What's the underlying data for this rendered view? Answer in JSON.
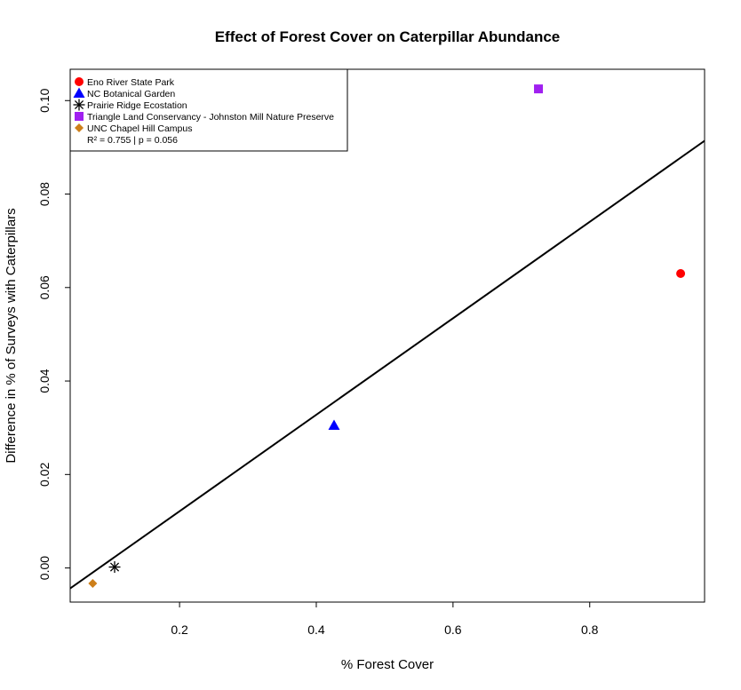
{
  "chart_data": {
    "type": "scatter",
    "title": "Effect of Forest Cover on Caterpillar Abundance",
    "xlabel": "% Forest Cover",
    "ylabel": "Difference in % of Surveys with Caterpillars",
    "xlim": [
      0.04,
      0.968
    ],
    "ylim": [
      -0.0073,
      0.1067
    ],
    "x_ticks": [
      0.2,
      0.4,
      0.6,
      0.8
    ],
    "x_tick_labels": [
      "0.2",
      "0.4",
      "0.6",
      "0.8"
    ],
    "y_ticks": [
      0.0,
      0.02,
      0.04,
      0.06,
      0.08,
      0.1
    ],
    "y_tick_labels": [
      "0.00",
      "0.02",
      "0.04",
      "0.06",
      "0.08",
      "0.10"
    ],
    "grid": false,
    "legend_position": "top-left",
    "series": [
      {
        "name": "Eno River State Park",
        "x": [
          0.933
        ],
        "y": [
          0.063
        ],
        "color": "#ff0000",
        "marker": "circle"
      },
      {
        "name": "NC Botanical Garden",
        "x": [
          0.426
        ],
        "y": [
          0.0305
        ],
        "color": "#0000ff",
        "marker": "triangle"
      },
      {
        "name": "Prairie Ridge Ecostation",
        "x": [
          0.105
        ],
        "y": [
          0.0002
        ],
        "color": "#000000",
        "marker": "asterisk"
      },
      {
        "name": "Triangle Land Conservancy - Johnston Mill Nature Preserve",
        "x": [
          0.725
        ],
        "y": [
          0.1025
        ],
        "color": "#a020f0",
        "marker": "square"
      },
      {
        "name": "UNC Chapel Hill Campus",
        "x": [
          0.073
        ],
        "y": [
          -0.0033
        ],
        "color": "#cd7f1a",
        "marker": "diamond"
      }
    ],
    "fit_line": {
      "intercept": -0.0085,
      "slope": 0.1032,
      "x_range": [
        0.04,
        0.968
      ],
      "color": "#000000"
    },
    "annotation": "R² =  0.755  | p =  0.056"
  }
}
